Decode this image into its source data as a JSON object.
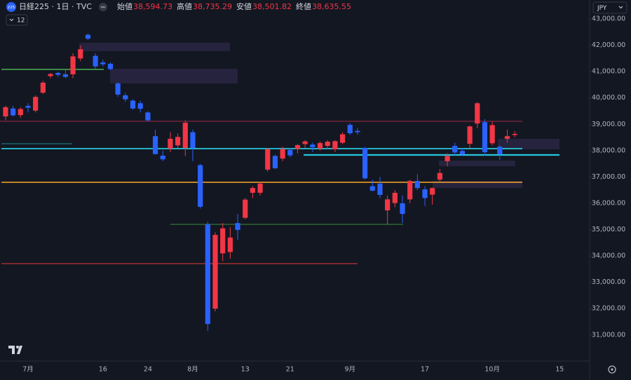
{
  "header": {
    "badge": "225",
    "title": "日経225 · 1日 · TVC",
    "fields": [
      {
        "label": "始値",
        "value": "38,594.73"
      },
      {
        "label": "高値",
        "value": "38,735.29"
      },
      {
        "label": "安値",
        "value": "38,501.82"
      },
      {
        "label": "終値",
        "value": "38,635.55"
      }
    ],
    "indicator_count": "12",
    "currency": "JPY"
  },
  "chart_data": {
    "type": "candlestick",
    "categories": [
      null,
      null,
      null,
      "7月",
      null,
      null,
      null,
      null,
      null,
      null,
      null,
      null,
      null,
      "16",
      null,
      null,
      null,
      null,
      null,
      "24",
      null,
      null,
      null,
      null,
      null,
      "8月",
      null,
      null,
      null,
      null,
      null,
      null,
      "13",
      null,
      null,
      null,
      null,
      null,
      "21",
      null,
      null,
      null,
      null,
      null,
      null,
      null,
      "9月",
      null,
      null,
      null,
      null,
      null,
      null,
      null,
      null,
      null,
      "17",
      null,
      null,
      null,
      null,
      null,
      null,
      null,
      null,
      "10月",
      null,
      null,
      null,
      null,
      null,
      null,
      null,
      null,
      "15"
    ],
    "open": [
      39300,
      39600,
      39350,
      39700,
      39520,
      40200,
      40830,
      40950,
      40900,
      40900,
      41500,
      42400,
      41600,
      41350,
      41300,
      40550,
      40100,
      39900,
      39800,
      39450,
      38550,
      37810,
      38080,
      38200,
      38100,
      38700,
      37450,
      35200,
      32000,
      34100,
      34150,
      35250,
      35450,
      36400,
      36400,
      37280,
      37800,
      37700,
      38030,
      38060,
      38250,
      38230,
      38080,
      38180,
      38050,
      38300,
      38980,
      38750,
      38100,
      36650,
      36750,
      35730,
      36010,
      36000,
      36150,
      36850,
      36530,
      36330,
      36900,
      37600,
      38180,
      37990,
      38260,
      39030,
      39080,
      38280,
      38150,
      38450,
      38594.73,
      null,
      null,
      null,
      null,
      null,
      null
    ],
    "high": [
      39700,
      39700,
      39650,
      39800,
      40100,
      40650,
      40950,
      41000,
      41100,
      41700,
      42000,
      42450,
      41700,
      41450,
      41350,
      40600,
      40200,
      39950,
      39900,
      39500,
      38800,
      38000,
      38700,
      38650,
      39150,
      38800,
      37500,
      35300,
      34900,
      35250,
      35100,
      35600,
      36200,
      36650,
      36800,
      38100,
      37850,
      38150,
      38100,
      38250,
      38400,
      38300,
      38350,
      38400,
      38400,
      38700,
      39050,
      38850,
      38150,
      36900,
      37000,
      36300,
      36500,
      36300,
      36900,
      37100,
      36650,
      36600,
      37300,
      37900,
      38300,
      38100,
      38950,
      39850,
      39200,
      39100,
      38200,
      38800,
      38735.29,
      null,
      null,
      null,
      null,
      null,
      null
    ],
    "low": [
      39150,
      39300,
      39250,
      39450,
      39450,
      40150,
      40750,
      40800,
      40750,
      40750,
      41400,
      42200,
      41100,
      41200,
      41050,
      40050,
      39850,
      39550,
      39450,
      39100,
      37850,
      37600,
      37950,
      38100,
      37800,
      37600,
      35800,
      31150,
      31900,
      33800,
      33900,
      34600,
      35400,
      36200,
      36300,
      37200,
      37300,
      37600,
      37750,
      37900,
      38100,
      37950,
      38000,
      38050,
      37950,
      38250,
      38600,
      38600,
      36900,
      36450,
      36200,
      35200,
      35850,
      35250,
      36000,
      36500,
      35900,
      35950,
      36800,
      37400,
      37800,
      37800,
      38100,
      38850,
      37800,
      38200,
      37650,
      38300,
      38501.82,
      null,
      null,
      null,
      null,
      null,
      null
    ],
    "close": [
      39650,
      39340,
      39580,
      39630,
      40040,
      40580,
      40910,
      40880,
      40800,
      41580,
      41850,
      42250,
      41200,
      41280,
      41100,
      40130,
      39950,
      39600,
      39590,
      39150,
      37870,
      37670,
      38450,
      38520,
      39060,
      38100,
      35870,
      31420,
      34800,
      35050,
      34700,
      34990,
      36140,
      36580,
      36750,
      38060,
      37330,
      38060,
      37820,
      38210,
      38350,
      38130,
      38290,
      38340,
      38360,
      38620,
      38660,
      38700,
      36950,
      36480,
      36320,
      36150,
      36400,
      35600,
      36850,
      36580,
      36200,
      36580,
      37150,
      37800,
      37930,
      37860,
      38920,
      39800,
      37940,
      38970,
      37860,
      38550,
      38635.55,
      null,
      null,
      null,
      null,
      null,
      null
    ],
    "up_color": "#f23645",
    "down_color": "#2962ff",
    "ylim": [
      30010,
      43720
    ],
    "yticks": [
      {
        "value": 31000,
        "label": "31,000.00"
      },
      {
        "value": 32000,
        "label": "32,000.00"
      },
      {
        "value": 33000,
        "label": "33,000.00"
      },
      {
        "value": 34000,
        "label": "34,000.00"
      },
      {
        "value": 35000,
        "label": "35,000.00"
      },
      {
        "value": 36000,
        "label": "36,000.00"
      },
      {
        "value": 37000,
        "label": "37,000.00"
      },
      {
        "value": 38000,
        "label": "38,000.00"
      },
      {
        "value": 39000,
        "label": "39,000.00"
      },
      {
        "value": 40000,
        "label": "40,000.00"
      },
      {
        "value": 41000,
        "label": "41,000.00"
      },
      {
        "value": 42000,
        "label": "42,000.00"
      },
      {
        "value": 43000,
        "label": "43,000.00"
      }
    ],
    "grid": false
  }
}
